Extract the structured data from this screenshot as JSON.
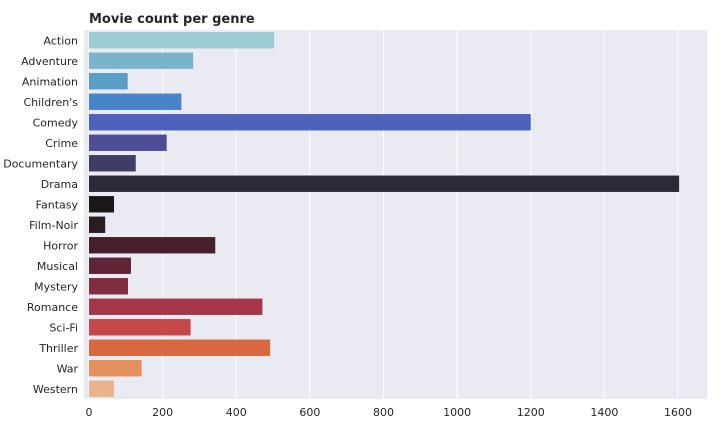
{
  "chart_data": {
    "type": "bar",
    "orientation": "horizontal",
    "title": "Movie count per genre",
    "xlabel": "",
    "ylabel": "",
    "categories": [
      "Action",
      "Adventure",
      "Animation",
      "Children's",
      "Comedy",
      "Crime",
      "Documentary",
      "Drama",
      "Fantasy",
      "Film-Noir",
      "Horror",
      "Musical",
      "Mystery",
      "Romance",
      "Sci-Fi",
      "Thriller",
      "War",
      "Western"
    ],
    "values": [
      503,
      283,
      105,
      251,
      1200,
      211,
      127,
      1603,
      68,
      44,
      343,
      114,
      106,
      471,
      276,
      492,
      143,
      68
    ],
    "xlim": [
      0,
      1680
    ],
    "xticks": [
      0,
      200,
      400,
      600,
      800,
      1000,
      1200,
      1400,
      1600
    ],
    "grid": true,
    "legend": "none",
    "colors": [
      "#9ccbd1",
      "#7ab4cc",
      "#5a9dc6",
      "#4a84c8",
      "#4d62bb",
      "#4d4d98",
      "#3e3d66",
      "#2b2a37",
      "#191717",
      "#2b1d1f",
      "#45202a",
      "#5d2535",
      "#812c40",
      "#a5364a",
      "#c4474a",
      "#d96841",
      "#e5915e",
      "#eab38c"
    ],
    "background": "#eaeaf2",
    "grid_color": "#ffffff"
  }
}
